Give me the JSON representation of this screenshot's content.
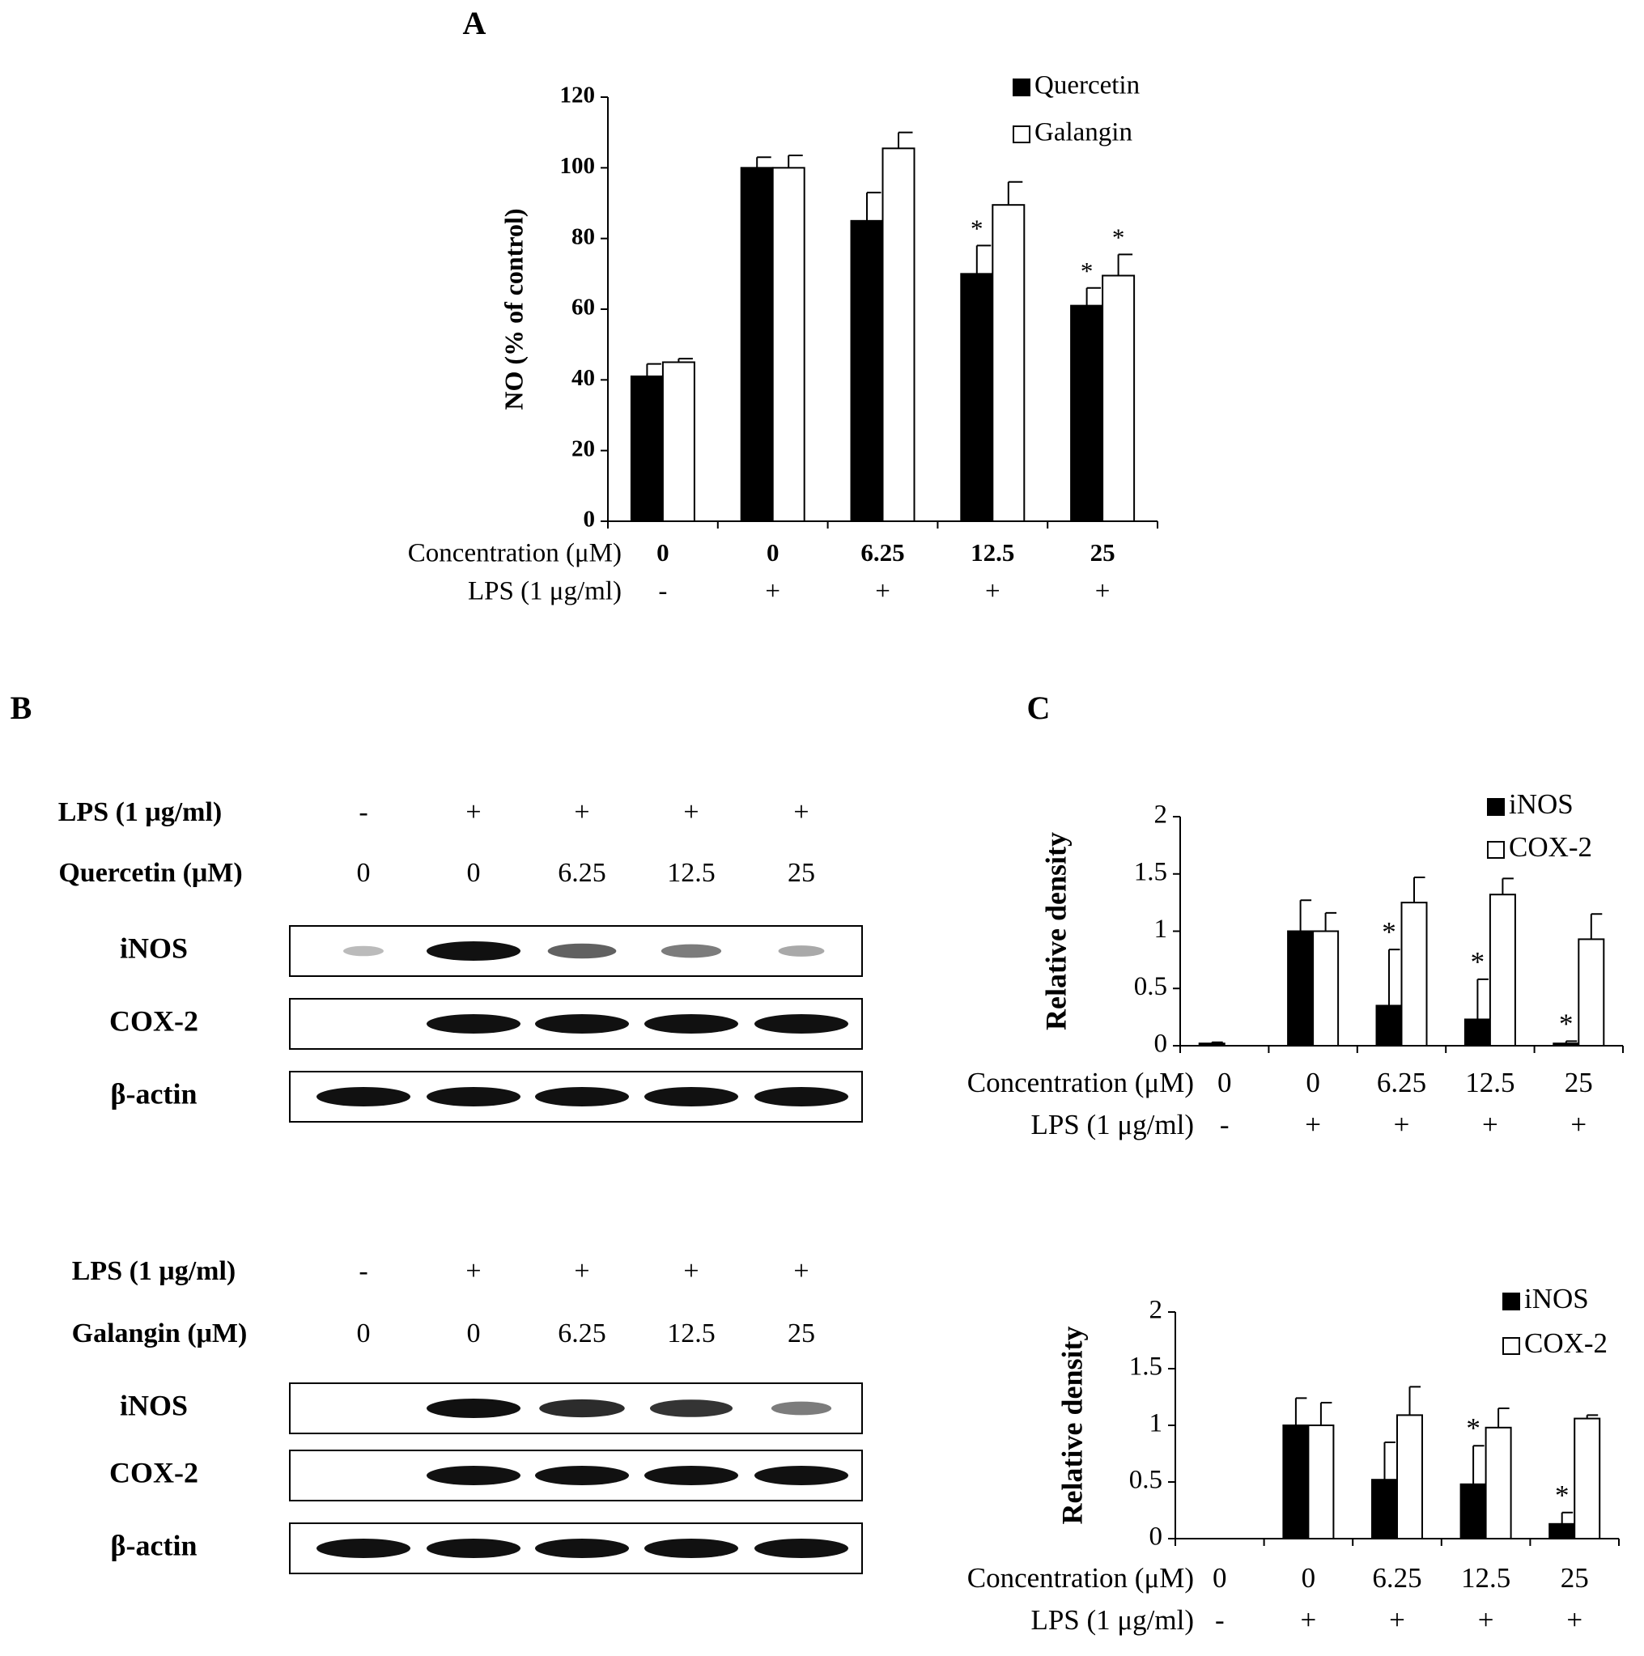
{
  "panel_labels": [
    "A",
    "B",
    "C"
  ],
  "chart_data": [
    {
      "type": "bar",
      "ylabel": "NO (% of control)",
      "category_label": "Concentration (μM)",
      "categories": [
        "0",
        "0",
        "6.25",
        "12.5",
        "25"
      ],
      "lps_label": "LPS (1 μg/ml)",
      "lps": [
        "-",
        "+",
        "+",
        "+",
        "+"
      ],
      "series": [
        {
          "name": "Quercetin",
          "color": "#000000",
          "values": [
            41,
            100,
            85,
            70,
            61
          ],
          "errors": [
            3.5,
            3,
            8,
            8,
            5
          ]
        },
        {
          "name": "Galangin",
          "color": "#ffffff",
          "values": [
            45,
            100,
            105.5,
            89.5,
            69.5
          ],
          "errors": [
            1,
            3.5,
            4.5,
            6.5,
            6
          ]
        }
      ],
      "ylim": [
        0,
        120
      ],
      "yticks": [
        0,
        20,
        40,
        60,
        80,
        100,
        120
      ],
      "legend": "upper right",
      "annotations": [
        {
          "text": "*",
          "series": 0,
          "category": 3
        },
        {
          "text": "*",
          "series": 0,
          "category": 4
        },
        {
          "text": "*",
          "series": 1,
          "category": 4
        }
      ]
    },
    {
      "type": "bar",
      "ylabel": "Relative density",
      "category_label": "Concentration (μM)",
      "categories": [
        "0",
        "0",
        "6.25",
        "12.5",
        "25"
      ],
      "lps_label": "LPS (1 μg/ml)",
      "lps": [
        "-",
        "+",
        "+",
        "+",
        "+"
      ],
      "series": [
        {
          "name": "iNOS",
          "color": "#000000",
          "values": [
            0.02,
            1,
            0.35,
            0.23,
            0.02
          ],
          "errors": [
            0.01,
            0.27,
            0.49,
            0.35,
            0.02
          ]
        },
        {
          "name": "COX-2",
          "color": "#ffffff",
          "values": [
            0,
            1,
            1.25,
            1.32,
            0.93
          ],
          "errors": [
            0,
            0.16,
            0.22,
            0.14,
            0.22
          ]
        }
      ],
      "ylim": [
        0,
        2
      ],
      "yticks": [
        0,
        0.5,
        1,
        1.5,
        2
      ],
      "legend": "upper right",
      "annotations": [
        {
          "text": "*",
          "series": 0,
          "category": 2
        },
        {
          "text": "*",
          "series": 0,
          "category": 3
        },
        {
          "text": "*",
          "series": 0,
          "category": 4
        }
      ]
    },
    {
      "type": "bar",
      "ylabel": "Relative density",
      "category_label": "Concentration (μM)",
      "categories": [
        "0",
        "0",
        "6.25",
        "12.5",
        "25"
      ],
      "lps_label": "LPS (1 μg/ml)",
      "lps": [
        "-",
        "+",
        "+",
        "+",
        "+"
      ],
      "series": [
        {
          "name": "iNOS",
          "color": "#000000",
          "values": [
            0,
            1,
            0.52,
            0.48,
            0.13
          ],
          "errors": [
            0,
            0.24,
            0.33,
            0.34,
            0.1
          ]
        },
        {
          "name": "COX-2",
          "color": "#ffffff",
          "values": [
            0,
            1,
            1.09,
            0.98,
            1.06
          ],
          "errors": [
            0,
            0.2,
            0.25,
            0.17,
            0.03
          ]
        }
      ],
      "ylim": [
        0,
        2
      ],
      "yticks": [
        0,
        0.5,
        1,
        1.5,
        2
      ],
      "legend": "upper right",
      "annotations": [
        {
          "text": "*",
          "series": 0,
          "category": 3
        },
        {
          "text": "*",
          "series": 0,
          "category": 4
        }
      ]
    }
  ],
  "blots": [
    {
      "lps_label": "LPS (1 μg/ml)",
      "lps": [
        "-",
        "+",
        "+",
        "+",
        "+"
      ],
      "dose_label": "Quercetin (μM)",
      "doses": [
        "0",
        "0",
        "6.25",
        "12.5",
        "25"
      ],
      "rows": [
        "iNOS",
        "COX-2",
        "β-actin"
      ]
    },
    {
      "lps_label": "LPS (1 μg/ml)",
      "lps": [
        "-",
        "+",
        "+",
        "+",
        "+"
      ],
      "dose_label": "Galangin (μM)",
      "doses": [
        "0",
        "0",
        "6.25",
        "12.5",
        "25"
      ],
      "rows": [
        "iNOS",
        "COX-2",
        "β-actin"
      ]
    }
  ]
}
